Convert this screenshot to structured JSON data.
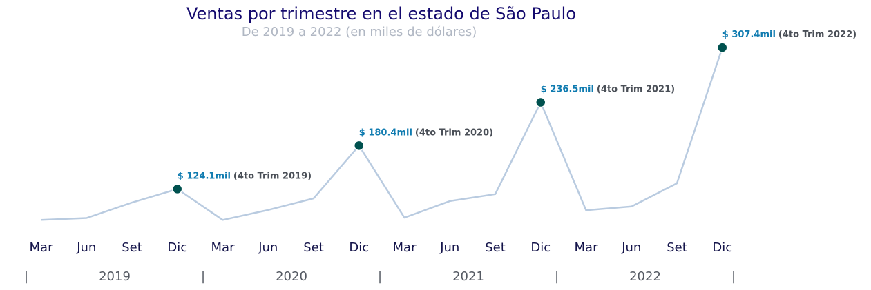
{
  "title": "Ventas por trimestre en el estado de São Paulo",
  "subtitle": "De 2019 a 2022 (en miles de dólares)",
  "colors": {
    "title": "#140a6e",
    "subtitle": "#b0b7c3",
    "line": "#b9cbe0",
    "marker": "#00514f",
    "value_label": "#0f7bb0",
    "period_label": "#4a4f57",
    "tick": "#14144a",
    "year": "#555a63"
  },
  "year_labels": [
    "2019",
    "2020",
    "2021",
    "2022"
  ],
  "year_separator": "|",
  "chart_data": {
    "type": "line",
    "title": "Ventas por trimestre en el estado de São Paulo",
    "subtitle": "De 2019 a 2022 (en miles de dólares)",
    "categories": [
      "Mar",
      "Jun",
      "Set",
      "Dic",
      "Mar",
      "Jun",
      "Set",
      "Dic",
      "Mar",
      "Jun",
      "Set",
      "Dic",
      "Mar",
      "Jun",
      "Set",
      "Dic"
    ],
    "values": [
      84.0,
      86.5,
      106.5,
      124.1,
      84.0,
      97.0,
      112.0,
      180.4,
      87.0,
      108.5,
      117.5,
      236.5,
      96.5,
      101.5,
      131.5,
      307.4
    ],
    "ylim": [
      70,
      320
    ],
    "y_axis_visible": false,
    "grid": false,
    "legend": "none",
    "annotations": [
      {
        "index": 3,
        "value_text": "$ 124.1mil",
        "period_text": "(4to Trim 2019)"
      },
      {
        "index": 7,
        "value_text": "$ 180.4mil",
        "period_text": "(4to Trim 2020)"
      },
      {
        "index": 11,
        "value_text": "$ 236.5mil",
        "period_text": "(4to Trim 2021)"
      },
      {
        "index": 15,
        "value_text": "$ 307.4mil",
        "period_text": "(4to Trim 2022)"
      }
    ]
  }
}
